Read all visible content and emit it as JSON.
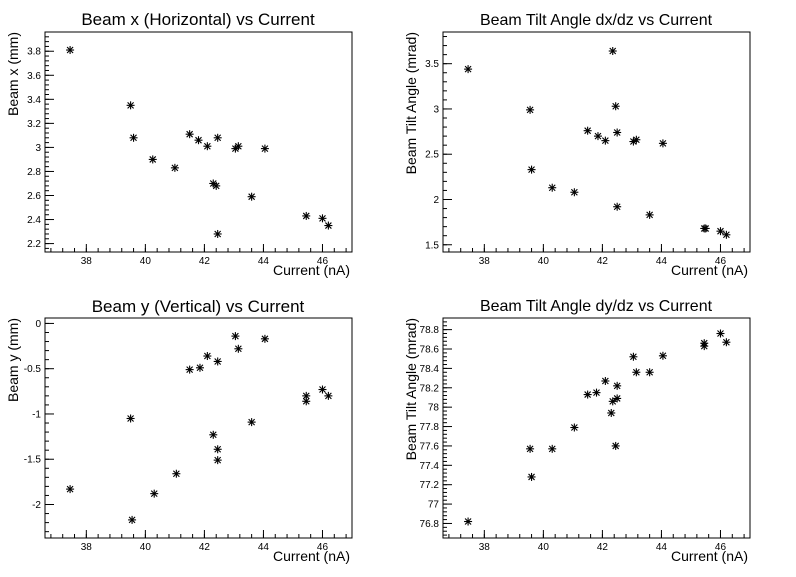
{
  "chart_data": [
    {
      "type": "scatter",
      "title": "Beam x (Horizontal) vs Current",
      "xlabel": "Current (nA)",
      "ylabel": "Beam x (mm)",
      "xlim": [
        36.6,
        47.0
      ],
      "ylim": [
        2.13,
        3.96
      ],
      "xticks": [
        38,
        40,
        42,
        44,
        46
      ],
      "xtick_labels": [
        "38",
        "40",
        "42",
        "44",
        "46"
      ],
      "yticks": [
        2.2,
        2.4,
        2.6,
        2.8,
        3.0,
        3.2,
        3.4,
        3.6,
        3.8
      ],
      "ytick_labels": [
        "2.2",
        "2.4",
        "2.6",
        "2.8",
        "3",
        "3.2",
        "3.4",
        "3.6",
        "3.8"
      ],
      "x": [
        37.45,
        39.5,
        39.6,
        40.25,
        41.0,
        41.5,
        41.8,
        42.1,
        42.3,
        42.45,
        42.4,
        42.45,
        43.05,
        43.15,
        43.6,
        44.05,
        45.45,
        46.0,
        46.2
      ],
      "y": [
        3.81,
        3.35,
        3.08,
        2.9,
        2.83,
        3.11,
        3.06,
        3.01,
        2.7,
        3.08,
        2.68,
        2.28,
        2.99,
        3.01,
        2.59,
        2.99,
        2.43,
        2.41,
        2.35
      ]
    },
    {
      "type": "scatter",
      "title": "Beam Tilt Angle dx/dz vs Current",
      "xlabel": "Current (nA)",
      "ylabel": "Beam Tilt Angle (mrad)",
      "xlim": [
        36.6,
        47.0
      ],
      "ylim": [
        1.42,
        3.85
      ],
      "xticks": [
        38,
        40,
        42,
        44,
        46
      ],
      "xtick_labels": [
        "38",
        "40",
        "42",
        "44",
        "46"
      ],
      "yticks": [
        1.5,
        2.0,
        2.5,
        3.0,
        3.5
      ],
      "ytick_labels": [
        "1.5",
        "2",
        "2.5",
        "3",
        "3.5"
      ],
      "x": [
        37.45,
        39.55,
        39.6,
        40.3,
        41.05,
        41.5,
        41.85,
        42.1,
        42.35,
        42.45,
        42.5,
        42.5,
        43.05,
        43.15,
        43.6,
        44.05,
        45.45,
        45.5,
        46.0,
        46.2
      ],
      "y": [
        3.44,
        2.99,
        2.33,
        2.13,
        2.08,
        2.76,
        2.7,
        2.65,
        3.64,
        3.03,
        2.74,
        1.92,
        2.64,
        2.66,
        1.83,
        2.62,
        1.68,
        1.68,
        1.65,
        1.61
      ]
    },
    {
      "type": "scatter",
      "title": "Beam y (Vertical) vs Current",
      "xlabel": "Current (nA)",
      "ylabel": "Beam y (mm)",
      "xlim": [
        36.6,
        47.0
      ],
      "ylim": [
        -2.37,
        0.06
      ],
      "xticks": [
        38,
        40,
        42,
        44,
        46
      ],
      "xtick_labels": [
        "38",
        "40",
        "42",
        "44",
        "46"
      ],
      "yticks": [
        -2.0,
        -1.5,
        -1.0,
        -0.5,
        0.0
      ],
      "ytick_labels": [
        "-2",
        "-1.5",
        "-1",
        "-0.5",
        "0"
      ],
      "x": [
        37.45,
        39.5,
        39.55,
        40.3,
        41.05,
        41.5,
        41.85,
        42.1,
        42.3,
        42.45,
        42.45,
        42.45,
        43.05,
        43.15,
        43.6,
        44.05,
        45.45,
        45.45,
        46.0,
        46.2
      ],
      "y": [
        -1.83,
        -1.05,
        -2.17,
        -1.88,
        -1.66,
        -0.51,
        -0.49,
        -0.36,
        -1.23,
        -0.42,
        -1.39,
        -1.51,
        -0.14,
        -0.28,
        -1.09,
        -0.17,
        -0.8,
        -0.86,
        -0.73,
        -0.8
      ]
    },
    {
      "type": "scatter",
      "title": "Beam Tilt Angle dy/dz vs Current",
      "xlabel": "Current (nA)",
      "ylabel": "Beam Tilt Angle (mrad)",
      "xlim": [
        36.6,
        47.0
      ],
      "ylim": [
        76.65,
        78.92
      ],
      "xticks": [
        38,
        40,
        42,
        44,
        46
      ],
      "xtick_labels": [
        "38",
        "40",
        "42",
        "44",
        "46"
      ],
      "yticks": [
        76.8,
        77.0,
        77.2,
        77.4,
        77.6,
        77.8,
        78.0,
        78.2,
        78.4,
        78.6,
        78.8
      ],
      "ytick_labels": [
        "76.8",
        "77",
        "77.2",
        "77.4",
        "77.6",
        "77.8",
        "78",
        "78.2",
        "78.4",
        "78.6",
        "78.8"
      ],
      "x": [
        37.45,
        39.55,
        39.6,
        40.3,
        41.05,
        41.5,
        41.8,
        42.1,
        42.3,
        42.35,
        42.45,
        42.5,
        42.5,
        43.05,
        43.15,
        43.6,
        44.05,
        45.45,
        45.45,
        46.0,
        46.2
      ],
      "y": [
        76.82,
        77.57,
        77.28,
        77.57,
        77.79,
        78.13,
        78.15,
        78.27,
        77.94,
        78.06,
        77.6,
        78.22,
        78.09,
        78.52,
        78.36,
        78.36,
        78.53,
        78.66,
        78.63,
        78.76,
        78.67
      ]
    }
  ]
}
